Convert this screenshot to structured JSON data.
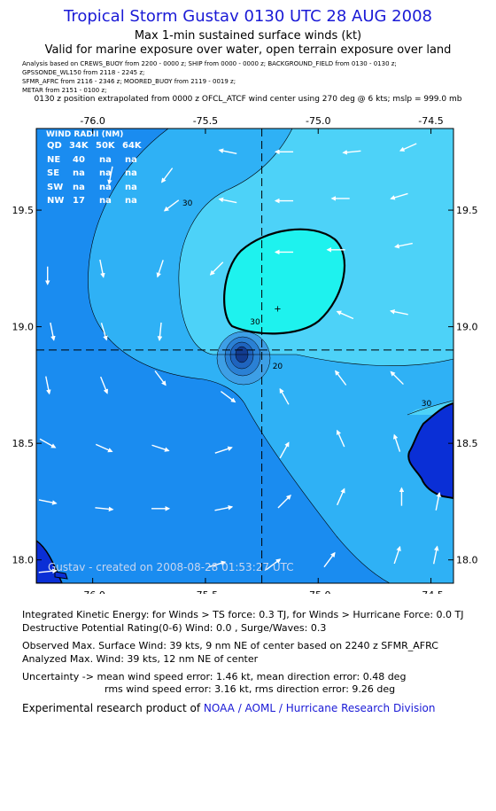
{
  "header": {
    "title": "Tropical Storm Gustav 0130 UTC 28 AUG 2008",
    "subtitle1": "Max 1-min sustained surface winds (kt)",
    "subtitle2": "Valid for marine exposure over water, open terrain exposure over land",
    "analysis_lines": [
      "Analysis based on   CREWS_BUOY from  2200 - 0000 z;   SHIP from 0000 - 0000 z;   BACKGROUND_FIELD from 0130 - 0130 z;",
      "GPSSONDE_WL150 from  2118 - 2245 z;",
      "SFMR_AFRC from 2116 - 2346 z;   MOORED_BUOY from 2119 - 0019 z;",
      "METAR from  2151 - 0100 z;"
    ],
    "position_note": "0130 z position extrapolated from 0000 z OFCL_ATCF wind center using 270 deg @ 6 kts; mslp = 999.0 mb"
  },
  "chart_data": {
    "type": "contour",
    "x_ticks": [
      "-76.0",
      "-75.5",
      "-75.0",
      "-74.5"
    ],
    "x_tick_values": [
      -76.0,
      -75.5,
      -75.0,
      -74.5
    ],
    "y_ticks": [
      "19.5",
      "19.0",
      "18.5",
      "18.0"
    ],
    "y_tick_values": [
      19.5,
      19.0,
      18.5,
      18.0
    ],
    "xlim": [
      -76.25,
      -74.4
    ],
    "ylim": [
      17.9,
      19.85
    ],
    "center": {
      "lon": -75.25,
      "lat": 18.9
    },
    "contour_labels": [
      {
        "text": "30",
        "lon": -75.58,
        "lat": 19.52
      },
      {
        "text": "30",
        "lon": -75.28,
        "lat": 19.01
      },
      {
        "text": "20",
        "lon": -75.18,
        "lat": 18.82
      },
      {
        "text": "30",
        "lon": -74.52,
        "lat": 18.66
      }
    ],
    "max_wind_marker": {
      "symbol": "+",
      "lon": -75.18,
      "lat": 19.08
    },
    "wind_radii_table": {
      "title": "WIND RADII (NM)",
      "header": [
        "QD",
        "34K",
        "50K",
        "64K"
      ],
      "rows": [
        [
          "NE",
          "40",
          "na",
          "na"
        ],
        [
          "SE",
          "na",
          "na",
          "na"
        ],
        [
          "SW",
          "na",
          "na",
          "na"
        ],
        [
          "NW",
          "17",
          "na",
          "na"
        ]
      ]
    },
    "credit": "Gustav - created on 2008-08-28 01:53:27 UTC",
    "colors": {
      "outer": "#1a8cf0",
      "mid": "#2fb1f5",
      "inner": "#4dd2f8",
      "core": "#1ef2ee",
      "vortex": [
        "#3d9fe6",
        "#2a80d4",
        "#1f64bf",
        "#123b8f"
      ],
      "land": "#0a2fd6",
      "title": "#1a1ad6"
    },
    "wind_vectors": [
      {
        "lon": -75.92,
        "lat": 19.65,
        "u": -0.2,
        "v": -1.0
      },
      {
        "lon": -75.67,
        "lat": 19.65,
        "u": -0.6,
        "v": -0.8
      },
      {
        "lon": -75.4,
        "lat": 19.75,
        "u": -1.0,
        "v": 0.2
      },
      {
        "lon": -75.15,
        "lat": 19.75,
        "u": -1.0,
        "v": 0.0
      },
      {
        "lon": -74.85,
        "lat": 19.75,
        "u": -1.0,
        "v": -0.1
      },
      {
        "lon": -74.6,
        "lat": 19.77,
        "u": -0.9,
        "v": -0.4
      },
      {
        "lon": -75.65,
        "lat": 19.52,
        "u": -0.8,
        "v": -0.6
      },
      {
        "lon": -75.4,
        "lat": 19.54,
        "u": -1.0,
        "v": 0.2
      },
      {
        "lon": -75.15,
        "lat": 19.54,
        "u": -1.0,
        "v": 0.0
      },
      {
        "lon": -74.9,
        "lat": 19.55,
        "u": -1.0,
        "v": 0.0
      },
      {
        "lon": -74.64,
        "lat": 19.56,
        "u": -1.0,
        "v": -0.3
      },
      {
        "lon": -76.2,
        "lat": 19.22,
        "u": 0.0,
        "v": -1.0
      },
      {
        "lon": -75.96,
        "lat": 19.25,
        "u": 0.2,
        "v": -1.0
      },
      {
        "lon": -75.7,
        "lat": 19.25,
        "u": -0.3,
        "v": -0.9
      },
      {
        "lon": -75.45,
        "lat": 19.25,
        "u": -0.7,
        "v": -0.7
      },
      {
        "lon": -75.15,
        "lat": 19.32,
        "u": -1.0,
        "v": 0.0
      },
      {
        "lon": -74.92,
        "lat": 19.33,
        "u": -1.0,
        "v": 0.0
      },
      {
        "lon": -74.62,
        "lat": 19.35,
        "u": -1.0,
        "v": -0.2
      },
      {
        "lon": -76.18,
        "lat": 18.98,
        "u": 0.2,
        "v": -1.0
      },
      {
        "lon": -75.95,
        "lat": 18.98,
        "u": 0.3,
        "v": -1.0
      },
      {
        "lon": -75.7,
        "lat": 18.98,
        "u": -0.1,
        "v": -1.0
      },
      {
        "lon": -74.88,
        "lat": 19.05,
        "u": -0.9,
        "v": 0.4
      },
      {
        "lon": -74.64,
        "lat": 19.06,
        "u": -1.0,
        "v": 0.2
      },
      {
        "lon": -76.2,
        "lat": 18.75,
        "u": 0.2,
        "v": -1.0
      },
      {
        "lon": -75.95,
        "lat": 18.75,
        "u": 0.4,
        "v": -1.0
      },
      {
        "lon": -75.7,
        "lat": 18.78,
        "u": 0.6,
        "v": -0.8
      },
      {
        "lon": -75.4,
        "lat": 18.7,
        "u": 0.8,
        "v": -0.6
      },
      {
        "lon": -75.15,
        "lat": 18.7,
        "u": -0.5,
        "v": 0.9
      },
      {
        "lon": -74.9,
        "lat": 18.78,
        "u": -0.6,
        "v": 0.8
      },
      {
        "lon": -74.65,
        "lat": 18.78,
        "u": -0.7,
        "v": 0.7
      },
      {
        "lon": -76.2,
        "lat": 18.5,
        "u": 0.9,
        "v": -0.5
      },
      {
        "lon": -75.95,
        "lat": 18.48,
        "u": 0.9,
        "v": -0.4
      },
      {
        "lon": -75.7,
        "lat": 18.48,
        "u": 0.9,
        "v": -0.3
      },
      {
        "lon": -75.42,
        "lat": 18.47,
        "u": 0.9,
        "v": 0.3
      },
      {
        "lon": -75.15,
        "lat": 18.47,
        "u": 0.5,
        "v": 0.9
      },
      {
        "lon": -74.9,
        "lat": 18.52,
        "u": -0.4,
        "v": 0.9
      },
      {
        "lon": -74.65,
        "lat": 18.5,
        "u": -0.3,
        "v": 0.9
      },
      {
        "lon": -76.2,
        "lat": 18.25,
        "u": 1.0,
        "v": -0.2
      },
      {
        "lon": -75.95,
        "lat": 18.22,
        "u": 1.0,
        "v": -0.1
      },
      {
        "lon": -75.7,
        "lat": 18.22,
        "u": 1.0,
        "v": 0.0
      },
      {
        "lon": -75.42,
        "lat": 18.22,
        "u": 1.0,
        "v": 0.2
      },
      {
        "lon": -75.15,
        "lat": 18.25,
        "u": 0.7,
        "v": 0.7
      },
      {
        "lon": -74.9,
        "lat": 18.27,
        "u": 0.4,
        "v": 0.9
      },
      {
        "lon": -74.63,
        "lat": 18.27,
        "u": 0.0,
        "v": 1.0
      },
      {
        "lon": -74.47,
        "lat": 18.25,
        "u": 0.2,
        "v": 1.0
      },
      {
        "lon": -76.2,
        "lat": 17.95,
        "u": 1.0,
        "v": 0.1
      },
      {
        "lon": -75.45,
        "lat": 17.98,
        "u": 1.0,
        "v": 0.3
      },
      {
        "lon": -75.2,
        "lat": 17.98,
        "u": 0.8,
        "v": 0.6
      },
      {
        "lon": -74.95,
        "lat": 18.0,
        "u": 0.6,
        "v": 0.8
      },
      {
        "lon": -74.65,
        "lat": 18.02,
        "u": 0.3,
        "v": 0.9
      },
      {
        "lon": -74.48,
        "lat": 18.02,
        "u": 0.2,
        "v": 1.0
      }
    ]
  },
  "stats": {
    "ike": "Integrated Kinetic Energy:  for Winds > TS force: 0.3 TJ,  for Winds > Hurricane Force: 0.0 TJ",
    "dpr": "Destructive Potential Rating(0-6)   Wind: 0.0 , Surge/Waves: 0.3",
    "observed": "Observed Max. Surface Wind: 39 kts, 9 nm NE of center based on 2240 z SFMR_AFRC",
    "analyzed": "Analyzed Max. Wind: 39 kts, 12 nm NE of center",
    "uncert1": "Uncertainty -> mean wind speed error: 1.46 kt,   mean direction error: 0.48 deg",
    "uncert2": "rms wind speed error: 3.16 kt,   rms direction error: 9.26 deg",
    "credit_prefix": "Experimental research product of ",
    "credit_org": "NOAA / AOML / Hurricane Research Division"
  }
}
